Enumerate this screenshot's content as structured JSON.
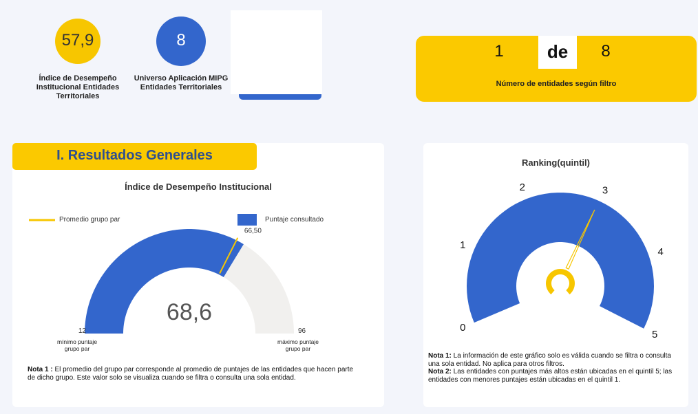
{
  "kpis": [
    {
      "value": "57,9",
      "label": "Índice de Desempeño Institucional Entidades Territoriales"
    },
    {
      "value": "8",
      "label": "Universo Aplicación MIPG Entidades Territoriales"
    }
  ],
  "counter": {
    "current": "1",
    "separator": "de",
    "total": "8",
    "caption": "Número de entidades según filtro"
  },
  "section": {
    "title": "I. Resultados Generales"
  },
  "gauge_chart": {
    "title": "Índice de Desempeño Institucional",
    "legend": {
      "average": "Promedio grupo par",
      "value": "Puntaje consultado"
    },
    "min": 12,
    "max": 96,
    "value": 68.6,
    "value_label": "68,6",
    "average": 66.5,
    "average_label": "66,50",
    "min_caption": "mínimo puntaje grupo par",
    "max_caption": "máximo puntaje grupo par",
    "note_bold": "Nota 1 :",
    "note": " El promedio del grupo par corresponde al promedio de puntajes de las entidades que hacen parte de dicho grupo.  Este valor solo se visualiza cuando se filtra o consulta una sola entidad."
  },
  "ranking": {
    "title": "Ranking(quintil)",
    "ticks": [
      0,
      1,
      2,
      3,
      4,
      5
    ],
    "value": 3,
    "notes": [
      {
        "bold": "Nota 1:",
        "text": " La información de este gráfico solo es válida cuando se filtra o consulta una sola entidad. No aplica para otros filtros."
      },
      {
        "bold": "Nota 2:",
        "text": " Las entidades con puntajes más altos están ubicadas en el quintil 5; las entidades con menores puntajes están ubicadas en el quintil 1."
      }
    ]
  }
}
